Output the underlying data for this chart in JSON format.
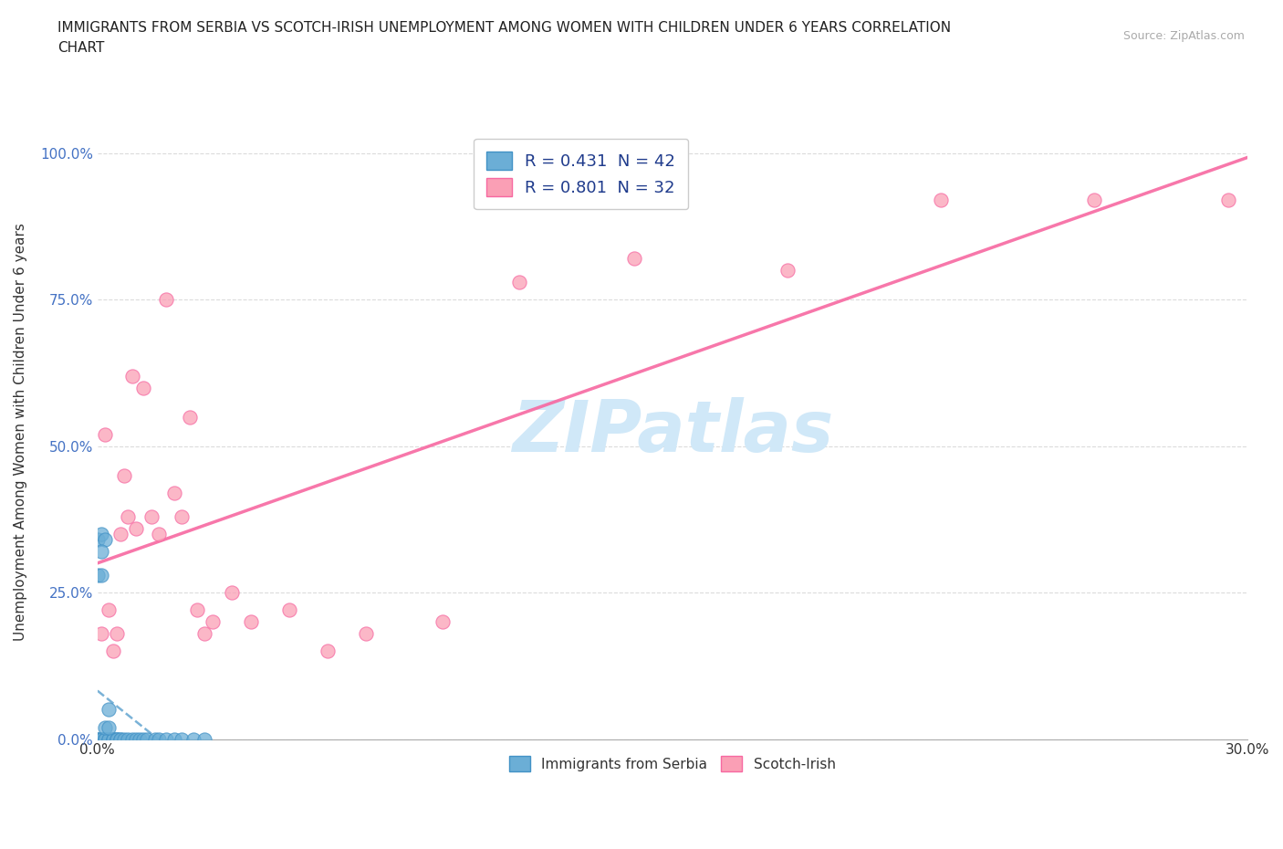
{
  "title": "IMMIGRANTS FROM SERBIA VS SCOTCH-IRISH UNEMPLOYMENT AMONG WOMEN WITH CHILDREN UNDER 6 YEARS CORRELATION\nCHART",
  "source": "Source: ZipAtlas.com",
  "ylabel_label": "Unemployment Among Women with Children Under 6 years",
  "x_min": 0.0,
  "x_max": 0.3,
  "y_min": 0.0,
  "y_max": 1.05,
  "x_ticks": [
    0.0,
    0.05,
    0.1,
    0.15,
    0.2,
    0.25,
    0.3
  ],
  "x_tick_labels": [
    "0.0%",
    "",
    "",
    "",
    "",
    "",
    "30.0%"
  ],
  "y_ticks": [
    0.0,
    0.25,
    0.5,
    0.75,
    1.0
  ],
  "y_tick_labels": [
    "0.0%",
    "25.0%",
    "50.0%",
    "75.0%",
    "100.0%"
  ],
  "serbia_color": "#6baed6",
  "scotch_color": "#fa9fb5",
  "serbia_edge": "#4292c6",
  "scotch_edge": "#f768a1",
  "serbia_line_color": "#4292c6",
  "scotch_line_color": "#f768a1",
  "serbia_R": 0.431,
  "serbia_N": 42,
  "scotch_R": 0.801,
  "scotch_N": 32,
  "watermark": "ZIPatlas",
  "watermark_color": "#d0e8f8",
  "serbia_scatter_x": [
    0.0,
    0.0,
    0.0,
    0.0,
    0.0,
    0.001,
    0.001,
    0.001,
    0.001,
    0.001,
    0.002,
    0.002,
    0.002,
    0.002,
    0.003,
    0.003,
    0.003,
    0.004,
    0.004,
    0.004,
    0.005,
    0.005,
    0.005,
    0.006,
    0.006,
    0.007,
    0.008,
    0.009,
    0.01,
    0.011,
    0.012,
    0.013,
    0.015,
    0.016,
    0.018,
    0.02,
    0.022,
    0.025,
    0.028,
    0.001,
    0.002,
    0.003
  ],
  "serbia_scatter_y": [
    0.0,
    0.0,
    0.0,
    0.28,
    0.34,
    0.0,
    0.0,
    0.0,
    0.28,
    0.35,
    0.0,
    0.0,
    0.0,
    0.34,
    0.0,
    0.0,
    0.05,
    0.0,
    0.0,
    0.0,
    0.0,
    0.0,
    0.0,
    0.0,
    0.0,
    0.0,
    0.0,
    0.0,
    0.0,
    0.0,
    0.0,
    0.0,
    0.0,
    0.0,
    0.0,
    0.0,
    0.0,
    0.0,
    0.0,
    0.32,
    0.02,
    0.02
  ],
  "scotch_scatter_x": [
    0.001,
    0.002,
    0.003,
    0.004,
    0.005,
    0.006,
    0.007,
    0.008,
    0.009,
    0.01,
    0.012,
    0.014,
    0.016,
    0.018,
    0.02,
    0.022,
    0.024,
    0.026,
    0.028,
    0.03,
    0.035,
    0.04,
    0.05,
    0.06,
    0.07,
    0.09,
    0.11,
    0.14,
    0.18,
    0.22,
    0.26,
    0.295
  ],
  "scotch_scatter_y": [
    0.18,
    0.52,
    0.22,
    0.15,
    0.18,
    0.35,
    0.45,
    0.38,
    0.62,
    0.36,
    0.6,
    0.38,
    0.35,
    0.75,
    0.42,
    0.38,
    0.55,
    0.22,
    0.18,
    0.2,
    0.25,
    0.2,
    0.22,
    0.15,
    0.18,
    0.2,
    0.78,
    0.82,
    0.8,
    0.92,
    0.92,
    0.92
  ]
}
